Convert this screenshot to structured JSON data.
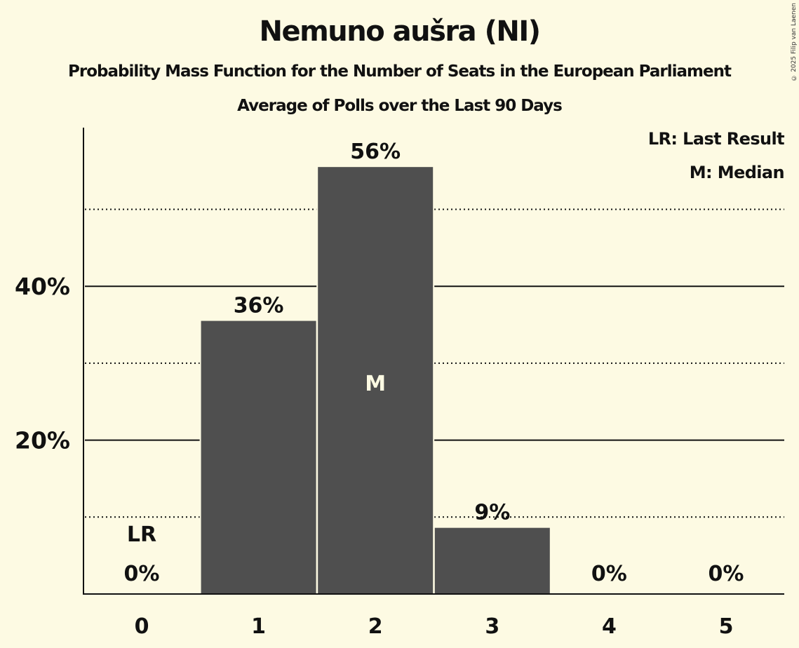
{
  "header": {
    "title": "Nemuno aušra (NI)",
    "subtitle": "Probability Mass Function for the Number of Seats in the European Parliament",
    "subtitle2": "Average of Polls over the Last 90 Days",
    "copyright": "© 2025 Filip van Laenen"
  },
  "legend": {
    "lr": "LR: Last Result",
    "m": "M: Median"
  },
  "colors": {
    "background": "#fdfae3",
    "bar": "#4f4f4f",
    "text": "#111111",
    "median_text": "#fdfae3"
  },
  "chart_data": {
    "type": "bar",
    "title": "Nemuno aušra (NI)",
    "subtitle": "Probability Mass Function for the Number of Seats in the European Parliament — Average of Polls over the Last 90 Days",
    "xlabel": "",
    "ylabel": "",
    "categories": [
      "0",
      "1",
      "2",
      "3",
      "4",
      "5"
    ],
    "values": [
      0,
      35.5,
      55.5,
      8.6,
      0,
      0
    ],
    "data_labels": [
      "0%",
      "36%",
      "56%",
      "9%",
      "0%",
      "0%"
    ],
    "ylim": [
      0,
      60
    ],
    "y_ticks": [
      {
        "value": 20,
        "label": "20%"
      },
      {
        "value": 40,
        "label": "40%"
      }
    ],
    "grid": {
      "solid": [
        20,
        40
      ],
      "dotted": [
        10,
        30,
        50
      ]
    },
    "annotations": [
      {
        "category": "0",
        "text": "LR",
        "meaning": "Last Result"
      },
      {
        "category": "2",
        "text": "M",
        "meaning": "Median"
      }
    ],
    "legend_position": "top-right"
  }
}
